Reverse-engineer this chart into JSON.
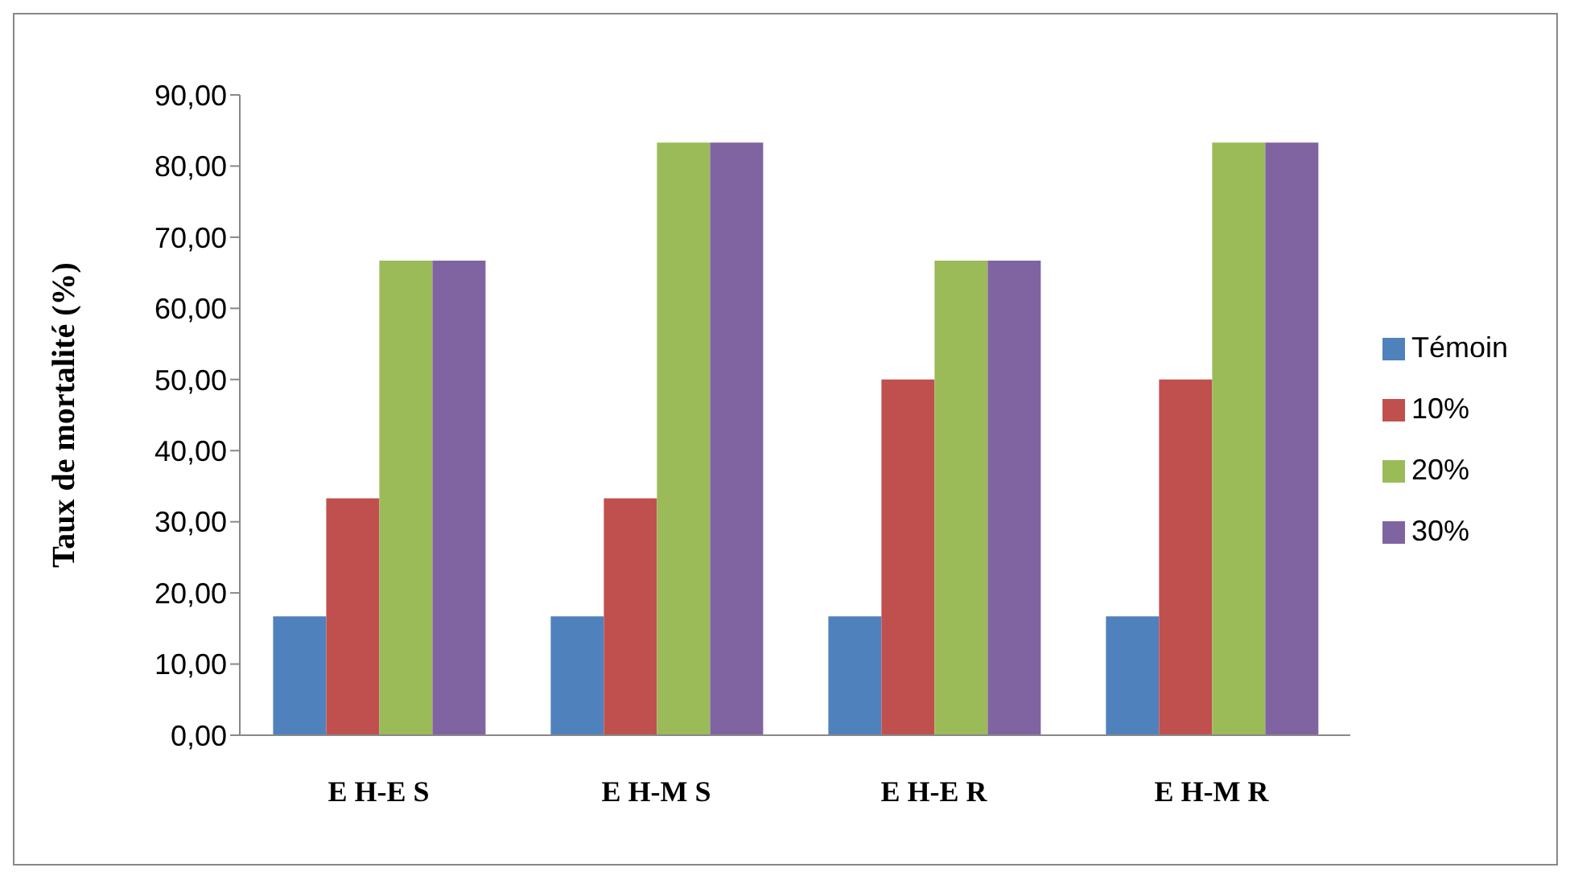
{
  "chart_data": {
    "type": "bar",
    "ylabel": "Taux de mortalité (%)",
    "categories": [
      "E H-E S",
      "E H-M S",
      "E H-E R",
      "E H-M R"
    ],
    "series": [
      {
        "name": "Témoin",
        "color": "#4f81bd",
        "values": [
          16.7,
          16.7,
          16.7,
          16.7
        ]
      },
      {
        "name": "10%",
        "color": "#c0504d",
        "values": [
          33.3,
          33.3,
          50,
          50
        ]
      },
      {
        "name": "20%",
        "color": "#9bbb59",
        "values": [
          66.7,
          83.3,
          66.7,
          83.3
        ]
      },
      {
        "name": "30%",
        "color": "#8064a2",
        "values": [
          66.7,
          83.3,
          66.7,
          83.3
        ]
      }
    ],
    "ylim": [
      0,
      90
    ],
    "yticks": [
      {
        "value": 0,
        "label": "0,00"
      },
      {
        "value": 10,
        "label": "10,00"
      },
      {
        "value": 20,
        "label": "20,00"
      },
      {
        "value": 30,
        "label": "30,00"
      },
      {
        "value": 40,
        "label": "40,00"
      },
      {
        "value": 50,
        "label": "50,00"
      },
      {
        "value": 60,
        "label": "60,00"
      },
      {
        "value": 70,
        "label": "70,00"
      },
      {
        "value": 80,
        "label": "80,00"
      },
      {
        "value": 90,
        "label": "90,00"
      }
    ],
    "grid": false,
    "legend": "right"
  }
}
